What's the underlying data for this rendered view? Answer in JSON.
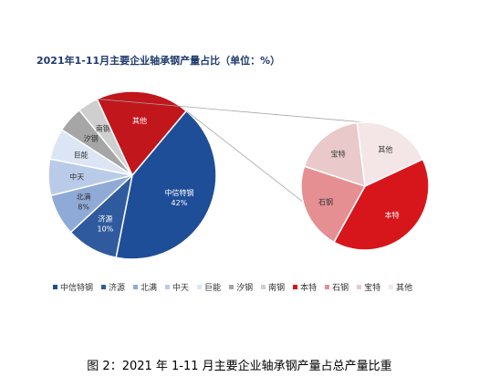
{
  "chart_data": {
    "type": "pie",
    "title": "2021年1-11月主要企业轴承钢产量占比（单位：%）",
    "caption": "图 2：2021 年 1-11 月主要企业轴承钢产量占总产量比重",
    "main_pie": {
      "slices": [
        {
          "name": "中信特钢",
          "value": 42,
          "label": "中信特钢\n42%",
          "color": "#1f4e99"
        },
        {
          "name": "济源",
          "value": 10,
          "label": "济源\n10%",
          "color": "#2f5b9e"
        },
        {
          "name": "北满",
          "value": 8,
          "label": "北满\n8%",
          "color": "#8faad7"
        },
        {
          "name": "中天",
          "value": 7,
          "label": "中天",
          "color": "#b9cbe8"
        },
        {
          "name": "巨能",
          "value": 6,
          "label": "巨能",
          "color": "#dce5f4"
        },
        {
          "name": "汐钢",
          "value": 5,
          "label": "汐钢",
          "color": "#a6a6a6"
        },
        {
          "name": "南钢",
          "value": 4,
          "label": "南钢",
          "color": "#cfcfcf"
        },
        {
          "name": "其他",
          "value": 18,
          "label": "其他",
          "color": "#c0161c"
        }
      ]
    },
    "sub_pie": {
      "slices": [
        {
          "name": "本特",
          "value": 40,
          "label": "本特",
          "color": "#d7161c"
        },
        {
          "name": "石钢",
          "value": 22,
          "label": "石钢",
          "color": "#e58f93"
        },
        {
          "name": "宝特",
          "value": 18,
          "label": "宝特",
          "color": "#e9c9ca"
        },
        {
          "name": "其他",
          "value": 20,
          "label": "其他",
          "color": "#f4e6e6"
        }
      ]
    },
    "legend": [
      {
        "name": "中信特钢",
        "color": "#1f4e99"
      },
      {
        "name": "济源",
        "color": "#2f5b9e"
      },
      {
        "name": "北满",
        "color": "#8faad7"
      },
      {
        "name": "中天",
        "color": "#b9cbe8"
      },
      {
        "name": "巨能",
        "color": "#dce5f4"
      },
      {
        "name": "汐钢",
        "color": "#a6a6a6"
      },
      {
        "name": "南钢",
        "color": "#cfcfcf"
      },
      {
        "name": "本特",
        "color": "#d7161c"
      },
      {
        "name": "石钢",
        "color": "#e58f93"
      },
      {
        "name": "宝特",
        "color": "#e9c9ca"
      },
      {
        "name": "其他",
        "color": "#f4e6e6"
      }
    ]
  }
}
